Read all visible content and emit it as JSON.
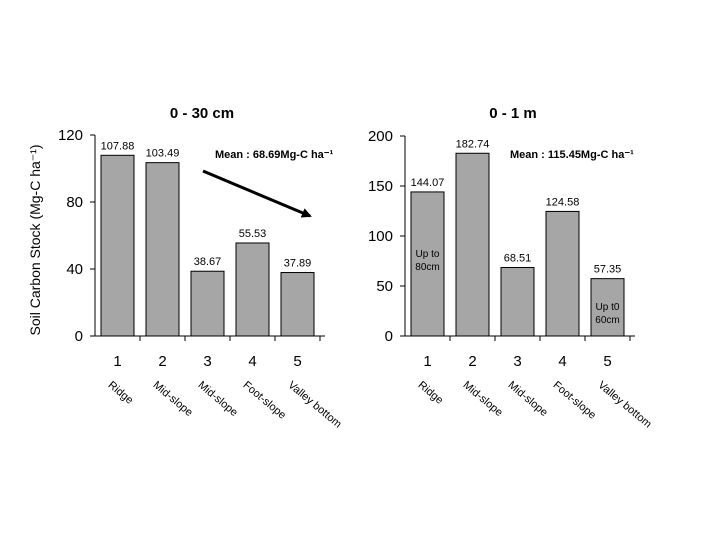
{
  "chart_data": [
    {
      "type": "bar",
      "title": "0 - 30 cm",
      "ylabel": "Soil Carbon Stock (Mg-C ha⁻¹)",
      "ylim": [
        0,
        120
      ],
      "yticks": [
        0,
        40,
        80,
        120
      ],
      "categories": [
        "1",
        "2",
        "3",
        "4",
        "5"
      ],
      "category_labels": [
        "Ridge",
        "Mid-slope",
        "Mid-slope",
        "Foot-slope",
        "Valley bottom"
      ],
      "values": [
        107.88,
        103.49,
        38.67,
        55.53,
        37.89
      ],
      "data_labels": [
        "107.88",
        "103.49",
        "38.67",
        "55.53",
        "37.89"
      ],
      "annotation": "Mean : 68.69Mg-C ha⁻¹",
      "bar_notes": [],
      "grid": false,
      "colors": {
        "bar": "#a6a6a6"
      }
    },
    {
      "type": "bar",
      "title": "0 - 1 m",
      "ylabel": "",
      "ylim": [
        0,
        200
      ],
      "yticks": [
        0,
        50,
        100,
        150,
        200
      ],
      "categories": [
        "1",
        "2",
        "3",
        "4",
        "5"
      ],
      "category_labels": [
        "Ridge",
        "Mid-slope",
        "Mid-slope",
        "Foot-slope",
        "Valley bottom"
      ],
      "values": [
        144.07,
        182.74,
        68.51,
        124.58,
        57.35
      ],
      "data_labels": [
        "144.07",
        "182.74",
        "68.51",
        "124.58",
        "57.35"
      ],
      "annotation": "Mean : 115.45Mg-C ha⁻¹",
      "bar_notes": [
        {
          "bar": 0,
          "lines": [
            "Up to",
            "80cm"
          ]
        },
        {
          "bar": 4,
          "lines": [
            "Up t0",
            "60cm"
          ]
        }
      ],
      "grid": false,
      "colors": {
        "bar": "#a6a6a6"
      }
    }
  ]
}
